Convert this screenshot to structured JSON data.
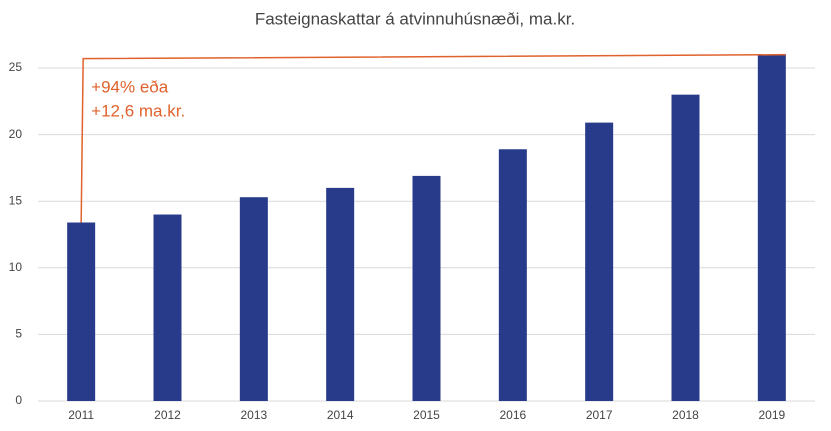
{
  "chart_data": {
    "type": "bar",
    "title": "Fasteignaskattar á atvinnuhúsnæði, ma.kr.",
    "categories": [
      "2011",
      "2012",
      "2013",
      "2014",
      "2015",
      "2016",
      "2017",
      "2018",
      "2019"
    ],
    "values": [
      13.4,
      14.0,
      15.3,
      16.0,
      16.9,
      18.9,
      20.9,
      23.0,
      26.0
    ],
    "color": "#283a8a",
    "ylim": [
      0,
      27
    ],
    "yticks": [
      0,
      5,
      10,
      15,
      20,
      25
    ],
    "grid": true,
    "annotation": {
      "lines": [
        "+94% eða",
        "+12,6 ma.kr."
      ],
      "color": "#e0622c"
    }
  }
}
